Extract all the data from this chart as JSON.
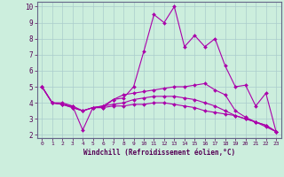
{
  "xlabel": "Windchill (Refroidissement éolien,°C)",
  "background_color": "#cceedd",
  "line_color": "#aa00aa",
  "axis_bg": "#cceedd",
  "grid_color": "#aacccc",
  "spine_color": "#666688",
  "xlim": [
    -0.5,
    23.5
  ],
  "ylim": [
    1.8,
    10.3
  ],
  "yticks": [
    2,
    3,
    4,
    5,
    6,
    7,
    8,
    9,
    10
  ],
  "xticks": [
    0,
    1,
    2,
    3,
    4,
    5,
    6,
    7,
    8,
    9,
    10,
    11,
    12,
    13,
    14,
    15,
    16,
    17,
    18,
    19,
    20,
    21,
    22,
    23
  ],
  "series": [
    [
      5.0,
      4.0,
      4.0,
      3.8,
      2.3,
      3.7,
      3.7,
      4.2,
      4.3,
      5.0,
      7.2,
      9.5,
      9.0,
      10.0,
      7.5,
      8.2,
      7.5,
      8.0,
      6.3,
      5.0,
      5.1,
      3.8,
      4.6,
      2.2
    ],
    [
      5.0,
      4.0,
      3.9,
      3.7,
      3.5,
      3.7,
      3.8,
      4.2,
      4.5,
      4.6,
      4.7,
      4.8,
      4.9,
      5.0,
      5.0,
      5.1,
      5.2,
      4.8,
      4.5,
      3.5,
      3.1,
      2.8,
      2.5,
      2.2
    ],
    [
      5.0,
      4.0,
      3.9,
      3.7,
      3.5,
      3.7,
      3.8,
      3.9,
      4.0,
      4.2,
      4.3,
      4.4,
      4.4,
      4.4,
      4.3,
      4.2,
      4.0,
      3.8,
      3.5,
      3.2,
      3.0,
      2.8,
      2.6,
      2.2
    ],
    [
      5.0,
      4.0,
      3.9,
      3.8,
      3.5,
      3.7,
      3.7,
      3.8,
      3.8,
      3.9,
      3.9,
      4.0,
      4.0,
      3.9,
      3.8,
      3.7,
      3.5,
      3.4,
      3.3,
      3.2,
      3.0,
      2.8,
      2.6,
      2.2
    ]
  ]
}
